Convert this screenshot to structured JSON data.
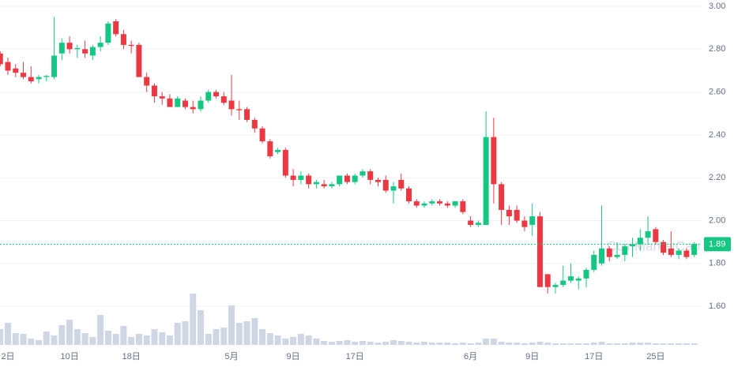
{
  "chart_data": {
    "type": "candlestick",
    "categories": [
      null,
      "2日",
      null,
      null,
      null,
      null,
      null,
      null,
      null,
      "10日",
      null,
      null,
      null,
      null,
      null,
      null,
      null,
      "18日",
      null,
      null,
      null,
      null,
      null,
      null,
      null,
      null,
      null,
      null,
      null,
      null,
      "5月",
      null,
      null,
      null,
      null,
      null,
      null,
      null,
      "9日",
      null,
      null,
      null,
      null,
      null,
      null,
      null,
      "17日",
      null,
      null,
      null,
      null,
      null,
      null,
      null,
      null,
      null,
      null,
      null,
      null,
      null,
      null,
      "6月",
      null,
      null,
      null,
      null,
      null,
      null,
      null,
      "9日",
      null,
      null,
      null,
      null,
      null,
      null,
      null,
      "17日",
      null,
      null,
      null,
      null,
      null,
      null,
      null,
      "25日",
      null,
      null,
      null,
      null,
      null
    ],
    "open": [
      2.78,
      2.74,
      2.71,
      2.69,
      2.67,
      2.66,
      2.67,
      2.67,
      2.78,
      2.83,
      2.8,
      2.8,
      2.77,
      2.81,
      2.83,
      2.93,
      2.87,
      2.82,
      2.82,
      2.67,
      2.63,
      2.58,
      2.57,
      2.53,
      2.56,
      2.53,
      2.52,
      2.56,
      2.6,
      2.58,
      2.56,
      2.52,
      2.52,
      2.47,
      2.43,
      2.37,
      2.32,
      2.33,
      2.21,
      2.19,
      2.21,
      2.17,
      2.17,
      2.16,
      2.17,
      2.21,
      2.18,
      2.21,
      2.23,
      2.19,
      2.19,
      2.14,
      2.19,
      2.15,
      2.09,
      2.07,
      2.08,
      2.09,
      2.08,
      2.07,
      2.09,
      2.0,
      1.98,
      1.98,
      2.39,
      2.17,
      2.05,
      2.05,
      2.0,
      1.98,
      2.02,
      1.75,
      1.69,
      1.7,
      1.72,
      1.72,
      1.73,
      1.77,
      1.8,
      1.87,
      1.83,
      1.84,
      1.88,
      1.89,
      1.92,
      1.96,
      1.9,
      1.87,
      1.84,
      1.86,
      1.84
    ],
    "high": [
      2.79,
      2.76,
      2.73,
      2.74,
      2.72,
      2.68,
      2.68,
      2.95,
      2.85,
      2.86,
      2.82,
      2.84,
      2.82,
      2.86,
      2.93,
      2.94,
      2.89,
      2.84,
      2.83,
      2.69,
      2.64,
      2.6,
      2.59,
      2.58,
      2.57,
      2.56,
      2.58,
      2.61,
      2.61,
      2.6,
      2.68,
      2.56,
      2.53,
      2.48,
      2.44,
      2.38,
      2.34,
      2.34,
      2.24,
      2.23,
      2.22,
      2.19,
      2.19,
      2.18,
      2.21,
      2.22,
      2.22,
      2.24,
      2.24,
      2.2,
      2.21,
      2.18,
      2.22,
      2.16,
      2.1,
      2.09,
      2.1,
      2.1,
      2.09,
      2.09,
      2.1,
      2.02,
      2.0,
      2.51,
      2.48,
      2.18,
      2.07,
      2.07,
      2.02,
      2.08,
      2.04,
      1.75,
      1.71,
      1.79,
      1.8,
      1.74,
      1.78,
      1.86,
      2.07,
      1.88,
      1.9,
      1.89,
      1.92,
      1.96,
      2.02,
      1.97,
      1.91,
      1.95,
      1.87,
      1.87,
      1.9
    ],
    "low": [
      2.72,
      2.68,
      2.67,
      2.66,
      2.64,
      2.64,
      2.65,
      2.66,
      2.75,
      2.78,
      2.76,
      2.76,
      2.75,
      2.79,
      2.82,
      2.86,
      2.8,
      2.78,
      2.67,
      2.6,
      2.55,
      2.54,
      2.53,
      2.53,
      2.52,
      2.5,
      2.51,
      2.55,
      2.57,
      2.54,
      2.49,
      2.47,
      2.46,
      2.41,
      2.36,
      2.29,
      2.31,
      2.2,
      2.16,
      2.17,
      2.15,
      2.15,
      2.15,
      2.15,
      2.16,
      2.17,
      2.17,
      2.2,
      2.17,
      2.16,
      2.13,
      2.08,
      2.14,
      2.08,
      2.06,
      2.06,
      2.07,
      2.07,
      2.06,
      2.06,
      2.03,
      1.97,
      1.97,
      1.98,
      2.08,
      1.98,
      1.98,
      1.99,
      1.95,
      1.93,
      1.69,
      1.66,
      1.66,
      1.69,
      1.71,
      1.68,
      1.69,
      1.76,
      1.79,
      1.81,
      1.82,
      1.81,
      1.83,
      1.86,
      1.89,
      1.89,
      1.84,
      1.83,
      1.82,
      1.82,
      1.83
    ],
    "close": [
      2.73,
      2.7,
      2.69,
      2.67,
      2.65,
      2.67,
      2.675,
      2.77,
      2.83,
      2.8,
      2.805,
      2.78,
      2.81,
      2.83,
      2.92,
      2.87,
      2.82,
      2.815,
      2.67,
      2.63,
      2.58,
      2.57,
      2.53,
      2.57,
      2.53,
      2.52,
      2.56,
      2.6,
      2.58,
      2.55,
      2.52,
      2.515,
      2.47,
      2.43,
      2.37,
      2.3,
      2.33,
      2.21,
      2.19,
      2.21,
      2.17,
      2.18,
      2.16,
      2.17,
      2.21,
      2.18,
      2.21,
      2.23,
      2.19,
      2.18,
      2.14,
      2.16,
      2.15,
      2.09,
      2.07,
      2.08,
      2.09,
      2.08,
      2.07,
      2.09,
      2.04,
      1.98,
      1.99,
      2.39,
      2.17,
      2.05,
      2.02,
      2.0,
      1.97,
      2.02,
      1.69,
      1.69,
      1.7,
      1.72,
      1.74,
      1.73,
      1.77,
      1.84,
      1.87,
      1.83,
      1.84,
      1.88,
      1.89,
      1.92,
      1.95,
      1.9,
      1.85,
      1.84,
      1.86,
      1.83,
      1.89
    ],
    "volume": [
      20,
      28,
      15,
      14,
      8,
      6,
      17,
      12,
      25,
      32,
      20,
      15,
      10,
      38,
      18,
      14,
      24,
      10,
      14,
      12,
      20,
      16,
      12,
      28,
      30,
      65,
      44,
      14,
      20,
      22,
      50,
      28,
      30,
      34,
      20,
      15,
      12,
      8,
      10,
      14,
      12,
      8,
      5,
      4,
      5,
      6,
      4,
      5,
      4,
      3,
      4,
      6,
      5,
      4,
      3,
      4,
      3,
      3,
      3,
      2,
      3,
      2,
      3,
      8,
      8,
      4,
      3,
      3,
      2,
      3,
      4,
      3,
      2,
      2,
      2,
      2,
      2,
      3,
      4,
      2,
      2,
      2,
      3,
      3,
      3,
      2,
      2,
      2,
      2,
      2,
      2
    ],
    "up_color": "#16c784",
    "down_color": "#ea3943",
    "volume_color": "#cfd6e4",
    "ylim": [
      1.42,
      3.0
    ],
    "yticks": [
      {
        "value": 1.6,
        "label": "1.60"
      },
      {
        "value": 1.8,
        "label": "1.80"
      },
      {
        "value": 2.0,
        "label": "2.00"
      },
      {
        "value": 2.2,
        "label": "2.20"
      },
      {
        "value": 2.4,
        "label": "2.40"
      },
      {
        "value": 2.6,
        "label": "2.60"
      },
      {
        "value": 2.8,
        "label": "2.80"
      },
      {
        "value": 3.0,
        "label": "3.00"
      }
    ],
    "grid": true,
    "current_price": {
      "value": 1.89,
      "label": "1.89"
    },
    "watermark": "CoinMarketCap"
  }
}
